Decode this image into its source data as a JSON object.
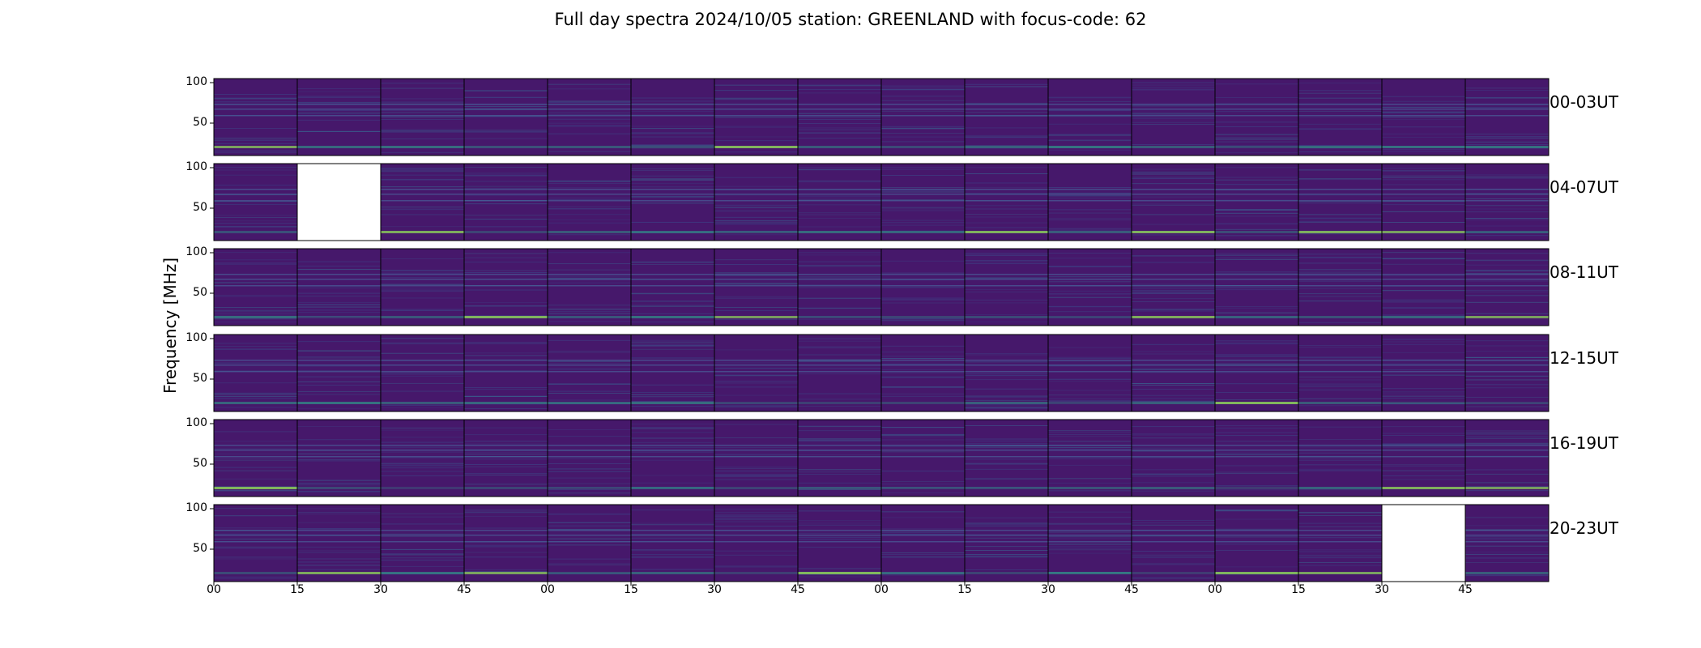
{
  "figure": {
    "title": "Full day spectra 2024/10/05 station: GREENLAND with focus-code: 62"
  },
  "chart_data": {
    "type": "heatmap",
    "title": "Full day spectra 2024/10/05 station: GREENLAND with focus-code: 62",
    "ylabel": "Frequency [MHz]",
    "xlabel": "",
    "ylim": [
      10,
      105
    ],
    "yticks": [
      "100",
      "50"
    ],
    "ytick_values": [
      100,
      50
    ],
    "xticks": [
      "00",
      "15",
      "30",
      "45",
      "00",
      "15",
      "30",
      "45",
      "00",
      "15",
      "30",
      "45",
      "00",
      "15",
      "30",
      "45"
    ],
    "rows": [
      "00-03UT",
      "04-07UT",
      "08-11UT",
      "12-15UT",
      "16-19UT",
      "20-23UT"
    ],
    "panels_per_row": 16,
    "colormap": "viridis",
    "colors": {
      "low": "#46186b",
      "mid": "#2f9a8a",
      "high": "#8ed35a",
      "missing": "#ffffff"
    },
    "missing_panels": [
      {
        "row": "04-07UT",
        "panel": 1
      },
      {
        "row": "20-23UT",
        "panel": 14
      }
    ]
  }
}
